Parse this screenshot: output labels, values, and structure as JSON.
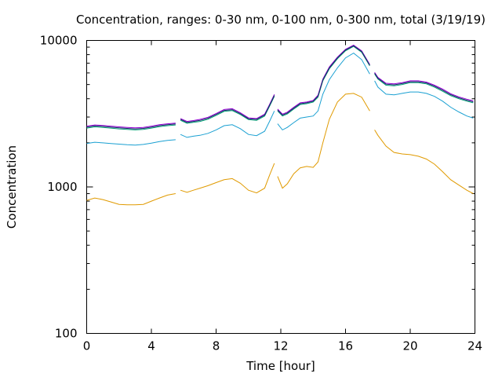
{
  "chart_data": {
    "type": "line",
    "title": "Concentration, ranges: 0-30 nm, 0-100 nm, 0-300 nm, total (3/19/19)",
    "xlabel": "Time [hour]",
    "ylabel": "Concentration",
    "xlim": [
      0,
      24
    ],
    "ylim": [
      100,
      10000
    ],
    "y_scale": "log",
    "grid": false,
    "x_ticks": [
      "0",
      "4",
      "8",
      "12",
      "16",
      "20",
      "24"
    ],
    "y_ticks": [
      "100",
      "1000",
      "10000"
    ],
    "x_tick_values": [
      0,
      4,
      8,
      12,
      16,
      20,
      24
    ],
    "y_tick_values": [
      100,
      1000,
      10000
    ],
    "series": [
      {
        "color": "#e09a00",
        "segments": [
          [
            [
              0,
              810
            ],
            [
              0.5,
              840
            ],
            [
              1,
              820
            ],
            [
              1.5,
              790
            ],
            [
              2,
              760
            ],
            [
              2.5,
              755
            ],
            [
              3,
              755
            ],
            [
              3.5,
              760
            ],
            [
              4,
              800
            ],
            [
              4.5,
              840
            ],
            [
              5,
              880
            ],
            [
              5.5,
              900
            ]
          ],
          [
            [
              5.8,
              950
            ],
            [
              6.2,
              920
            ],
            [
              6.6,
              950
            ],
            [
              7,
              980
            ],
            [
              7.5,
              1020
            ],
            [
              8,
              1070
            ],
            [
              8.5,
              1120
            ],
            [
              9,
              1140
            ],
            [
              9.5,
              1060
            ],
            [
              10,
              950
            ],
            [
              10.5,
              910
            ],
            [
              11,
              980
            ],
            [
              11.3,
              1200
            ],
            [
              11.6,
              1450
            ]
          ],
          [
            [
              11.8,
              1180
            ],
            [
              12.1,
              980
            ],
            [
              12.4,
              1050
            ],
            [
              12.8,
              1230
            ],
            [
              13.2,
              1350
            ],
            [
              13.6,
              1380
            ],
            [
              14,
              1360
            ],
            [
              14.3,
              1480
            ],
            [
              14.6,
              2000
            ],
            [
              15,
              2900
            ],
            [
              15.5,
              3800
            ],
            [
              16,
              4300
            ],
            [
              16.5,
              4350
            ],
            [
              17,
              4100
            ],
            [
              17.5,
              3300
            ]
          ],
          [
            [
              17.8,
              2450
            ],
            [
              18,
              2250
            ],
            [
              18.5,
              1900
            ],
            [
              19,
              1720
            ],
            [
              19.5,
              1680
            ],
            [
              20,
              1660
            ],
            [
              20.5,
              1620
            ],
            [
              21,
              1550
            ],
            [
              21.5,
              1430
            ],
            [
              22,
              1270
            ],
            [
              22.5,
              1120
            ],
            [
              23,
              1030
            ],
            [
              23.5,
              950
            ],
            [
              23.9,
              900
            ]
          ]
        ]
      },
      {
        "color": "#1aa0d2",
        "segments": [
          [
            [
              0,
              1980
            ],
            [
              0.5,
              2020
            ],
            [
              1,
              2000
            ],
            [
              1.5,
              1980
            ],
            [
              2,
              1960
            ],
            [
              2.5,
              1940
            ],
            [
              3,
              1930
            ],
            [
              3.5,
              1950
            ],
            [
              4,
              1990
            ],
            [
              4.5,
              2040
            ],
            [
              5,
              2080
            ],
            [
              5.5,
              2100
            ]
          ],
          [
            [
              5.8,
              2280
            ],
            [
              6.2,
              2180
            ],
            [
              6.6,
              2220
            ],
            [
              7,
              2250
            ],
            [
              7.5,
              2320
            ],
            [
              8,
              2450
            ],
            [
              8.5,
              2620
            ],
            [
              9,
              2660
            ],
            [
              9.5,
              2500
            ],
            [
              10,
              2280
            ],
            [
              10.5,
              2240
            ],
            [
              11,
              2400
            ],
            [
              11.3,
              2800
            ],
            [
              11.6,
              3300
            ]
          ],
          [
            [
              11.8,
              2700
            ],
            [
              12.1,
              2450
            ],
            [
              12.4,
              2550
            ],
            [
              12.8,
              2750
            ],
            [
              13.2,
              2950
            ],
            [
              13.6,
              3000
            ],
            [
              14,
              3050
            ],
            [
              14.3,
              3300
            ],
            [
              14.6,
              4300
            ],
            [
              15,
              5400
            ],
            [
              15.5,
              6500
            ],
            [
              16,
              7600
            ],
            [
              16.5,
              8200
            ],
            [
              17,
              7400
            ],
            [
              17.5,
              5900
            ]
          ],
          [
            [
              17.8,
              5300
            ],
            [
              18,
              4800
            ],
            [
              18.5,
              4300
            ],
            [
              19,
              4250
            ],
            [
              19.5,
              4350
            ],
            [
              20,
              4450
            ],
            [
              20.5,
              4450
            ],
            [
              21,
              4350
            ],
            [
              21.5,
              4150
            ],
            [
              22,
              3850
            ],
            [
              22.5,
              3500
            ],
            [
              23,
              3250
            ],
            [
              23.5,
              3050
            ],
            [
              23.9,
              2950
            ]
          ]
        ]
      },
      {
        "color": "#009e73",
        "segments": [
          [
            [
              0,
              2520
            ],
            [
              0.5,
              2570
            ],
            [
              1,
              2550
            ],
            [
              1.5,
              2520
            ],
            [
              2,
              2490
            ],
            [
              2.5,
              2470
            ],
            [
              3,
              2450
            ],
            [
              3.5,
              2470
            ],
            [
              4,
              2520
            ],
            [
              4.5,
              2580
            ],
            [
              5,
              2620
            ],
            [
              5.5,
              2650
            ]
          ],
          [
            [
              5.8,
              2850
            ],
            [
              6.2,
              2720
            ],
            [
              6.6,
              2760
            ],
            [
              7,
              2800
            ],
            [
              7.5,
              2900
            ],
            [
              8,
              3080
            ],
            [
              8.5,
              3280
            ],
            [
              9,
              3320
            ],
            [
              9.5,
              3120
            ],
            [
              10,
              2880
            ],
            [
              10.5,
              2850
            ],
            [
              11,
              3050
            ],
            [
              11.3,
              3550
            ],
            [
              11.6,
              4150
            ]
          ],
          [
            [
              11.8,
              3300
            ],
            [
              12.1,
              3050
            ],
            [
              12.4,
              3150
            ],
            [
              12.8,
              3400
            ],
            [
              13.2,
              3650
            ],
            [
              13.6,
              3700
            ],
            [
              14,
              3800
            ],
            [
              14.3,
              4100
            ],
            [
              14.6,
              5300
            ],
            [
              15,
              6400
            ],
            [
              15.5,
              7500
            ],
            [
              16,
              8500
            ],
            [
              16.5,
              9100
            ],
            [
              17,
              8300
            ],
            [
              17.5,
              6700
            ]
          ],
          [
            [
              17.8,
              5900
            ],
            [
              18,
              5450
            ],
            [
              18.5,
              4950
            ],
            [
              19,
              4900
            ],
            [
              19.5,
              5000
            ],
            [
              20,
              5150
            ],
            [
              20.5,
              5150
            ],
            [
              21,
              5050
            ],
            [
              21.5,
              4800
            ],
            [
              22,
              4500
            ],
            [
              22.5,
              4200
            ],
            [
              23,
              4000
            ],
            [
              23.5,
              3850
            ],
            [
              23.9,
              3750
            ]
          ]
        ]
      },
      {
        "color": "#9400d3",
        "segments": [
          [
            [
              0,
              2600
            ],
            [
              0.5,
              2650
            ],
            [
              1,
              2630
            ],
            [
              1.5,
              2600
            ],
            [
              2,
              2570
            ],
            [
              2.5,
              2550
            ],
            [
              3,
              2530
            ],
            [
              3.5,
              2550
            ],
            [
              4,
              2600
            ],
            [
              4.5,
              2660
            ],
            [
              5,
              2700
            ],
            [
              5.5,
              2730
            ]
          ],
          [
            [
              5.8,
              2930
            ],
            [
              6.2,
              2800
            ],
            [
              6.6,
              2840
            ],
            [
              7,
              2890
            ],
            [
              7.5,
              2990
            ],
            [
              8,
              3170
            ],
            [
              8.5,
              3380
            ],
            [
              9,
              3420
            ],
            [
              9.5,
              3210
            ],
            [
              10,
              2960
            ],
            [
              10.5,
              2930
            ],
            [
              11,
              3140
            ],
            [
              11.3,
              3650
            ],
            [
              11.6,
              4280
            ]
          ],
          [
            [
              11.8,
              3400
            ],
            [
              12.1,
              3140
            ],
            [
              12.4,
              3240
            ],
            [
              12.8,
              3500
            ],
            [
              13.2,
              3750
            ],
            [
              13.6,
              3800
            ],
            [
              14,
              3900
            ],
            [
              14.3,
              4230
            ],
            [
              14.6,
              5450
            ],
            [
              15,
              6600
            ],
            [
              15.5,
              7700
            ],
            [
              16,
              8700
            ],
            [
              16.5,
              9300
            ],
            [
              17,
              8500
            ],
            [
              17.5,
              6850
            ]
          ],
          [
            [
              17.8,
              6050
            ],
            [
              18,
              5600
            ],
            [
              18.5,
              5100
            ],
            [
              19,
              5050
            ],
            [
              19.5,
              5150
            ],
            [
              20,
              5300
            ],
            [
              20.5,
              5300
            ],
            [
              21,
              5200
            ],
            [
              21.5,
              4950
            ],
            [
              22,
              4650
            ],
            [
              22.5,
              4330
            ],
            [
              23,
              4120
            ],
            [
              23.5,
              3970
            ],
            [
              23.9,
              3870
            ]
          ]
        ]
      },
      {
        "color": "#1a2a6c",
        "segments": [
          [
            [
              0,
              2560
            ],
            [
              0.5,
              2610
            ],
            [
              1,
              2590
            ],
            [
              1.5,
              2560
            ],
            [
              2,
              2530
            ],
            [
              2.5,
              2510
            ],
            [
              3,
              2490
            ],
            [
              3.5,
              2510
            ],
            [
              4,
              2560
            ],
            [
              4.5,
              2620
            ],
            [
              5,
              2660
            ],
            [
              5.5,
              2690
            ]
          ],
          [
            [
              5.8,
              2890
            ],
            [
              6.2,
              2760
            ],
            [
              6.6,
              2800
            ],
            [
              7,
              2845
            ],
            [
              7.5,
              2945
            ],
            [
              8,
              3125
            ],
            [
              8.5,
              3330
            ],
            [
              9,
              3370
            ],
            [
              9.5,
              3165
            ],
            [
              10,
              2920
            ],
            [
              10.5,
              2890
            ],
            [
              11,
              3095
            ],
            [
              11.3,
              3600
            ],
            [
              11.6,
              4215
            ]
          ],
          [
            [
              11.8,
              3350
            ],
            [
              12.1,
              3095
            ],
            [
              12.4,
              3195
            ],
            [
              12.8,
              3450
            ],
            [
              13.2,
              3700
            ],
            [
              13.6,
              3750
            ],
            [
              14,
              3850
            ],
            [
              14.3,
              4165
            ],
            [
              14.6,
              5375
            ],
            [
              15,
              6500
            ],
            [
              15.5,
              7600
            ],
            [
              16,
              8600
            ],
            [
              16.5,
              9200
            ],
            [
              17,
              8400
            ],
            [
              17.5,
              6775
            ]
          ],
          [
            [
              17.8,
              5975
            ],
            [
              18,
              5525
            ],
            [
              18.5,
              5025
            ],
            [
              19,
              4975
            ],
            [
              19.5,
              5075
            ],
            [
              20,
              5225
            ],
            [
              20.5,
              5225
            ],
            [
              21,
              5125
            ],
            [
              21.5,
              4875
            ],
            [
              22,
              4575
            ],
            [
              22.5,
              4265
            ],
            [
              23,
              4060
            ],
            [
              23.5,
              3910
            ],
            [
              23.9,
              3810
            ]
          ]
        ]
      }
    ]
  }
}
